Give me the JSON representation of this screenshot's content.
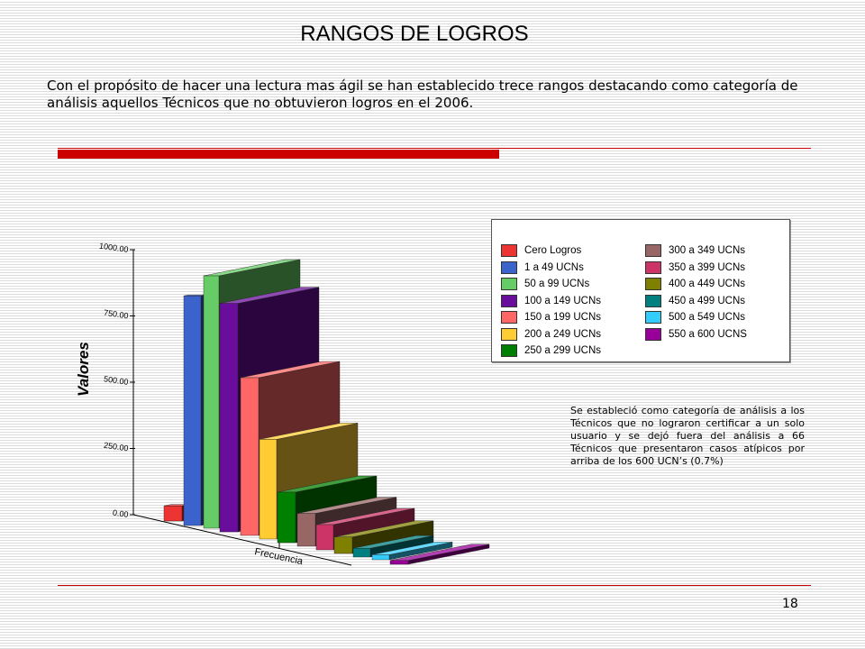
{
  "title": "RANGOS DE LOGROS",
  "intro": "Con el propósito de hacer una lectura mas ágil se han establecido trece rangos destacando como categoría de análisis aquellos Técnicos que no obtuvieron logros en el 2006.",
  "note": "Se estableció como categoría de análisis a los Técnicos que no lograron certificar a un solo usuario y se dejó fuera del análisis a 66 Técnicos que presentaron casos atípicos por arriba de los 600 UCN’s (0.7%)",
  "page_number": "18",
  "colors": {
    "accent_red": "#cc0000"
  },
  "chart_data": {
    "type": "bar",
    "style": "3d",
    "xlabel": "Frecuencia",
    "ylabel": "Valores",
    "ylim": [
      0,
      1000
    ],
    "y_ticks": [
      "0.00",
      "250.00",
      "500.00",
      "750.00",
      "1000.00"
    ],
    "legend_position": "top-right",
    "series": [
      {
        "name": "Cero Logros",
        "value": 60,
        "color": "#ee3333"
      },
      {
        "name": "1 a 49 UCNs",
        "value": 910,
        "color": "#3b63cc"
      },
      {
        "name": "50 a 99 UCNs",
        "value": 1000,
        "color": "#66cc66"
      },
      {
        "name": "100 a 149 UCNs",
        "value": 905,
        "color": "#6a0d9c"
      },
      {
        "name": "150 a 199 UCNs",
        "value": 625,
        "color": "#ff6666"
      },
      {
        "name": "200 a 249 UCNs",
        "value": 395,
        "color": "#ffcc33"
      },
      {
        "name": "250 a 299 UCNs",
        "value": 200,
        "color": "#008000"
      },
      {
        "name": "300 a 349 UCNs",
        "value": 130,
        "color": "#996666"
      },
      {
        "name": "350 a 399 UCNs",
        "value": 100,
        "color": "#cc3366"
      },
      {
        "name": "400 a 449 UCNs",
        "value": 65,
        "color": "#808000"
      },
      {
        "name": "450 a 499 UCNs",
        "value": 35,
        "color": "#008080"
      },
      {
        "name": "500 a 549 UCNs",
        "value": 20,
        "color": "#33ccff"
      },
      {
        "name": "550 a 600 UCNS",
        "value": 15,
        "color": "#990099"
      }
    ]
  }
}
